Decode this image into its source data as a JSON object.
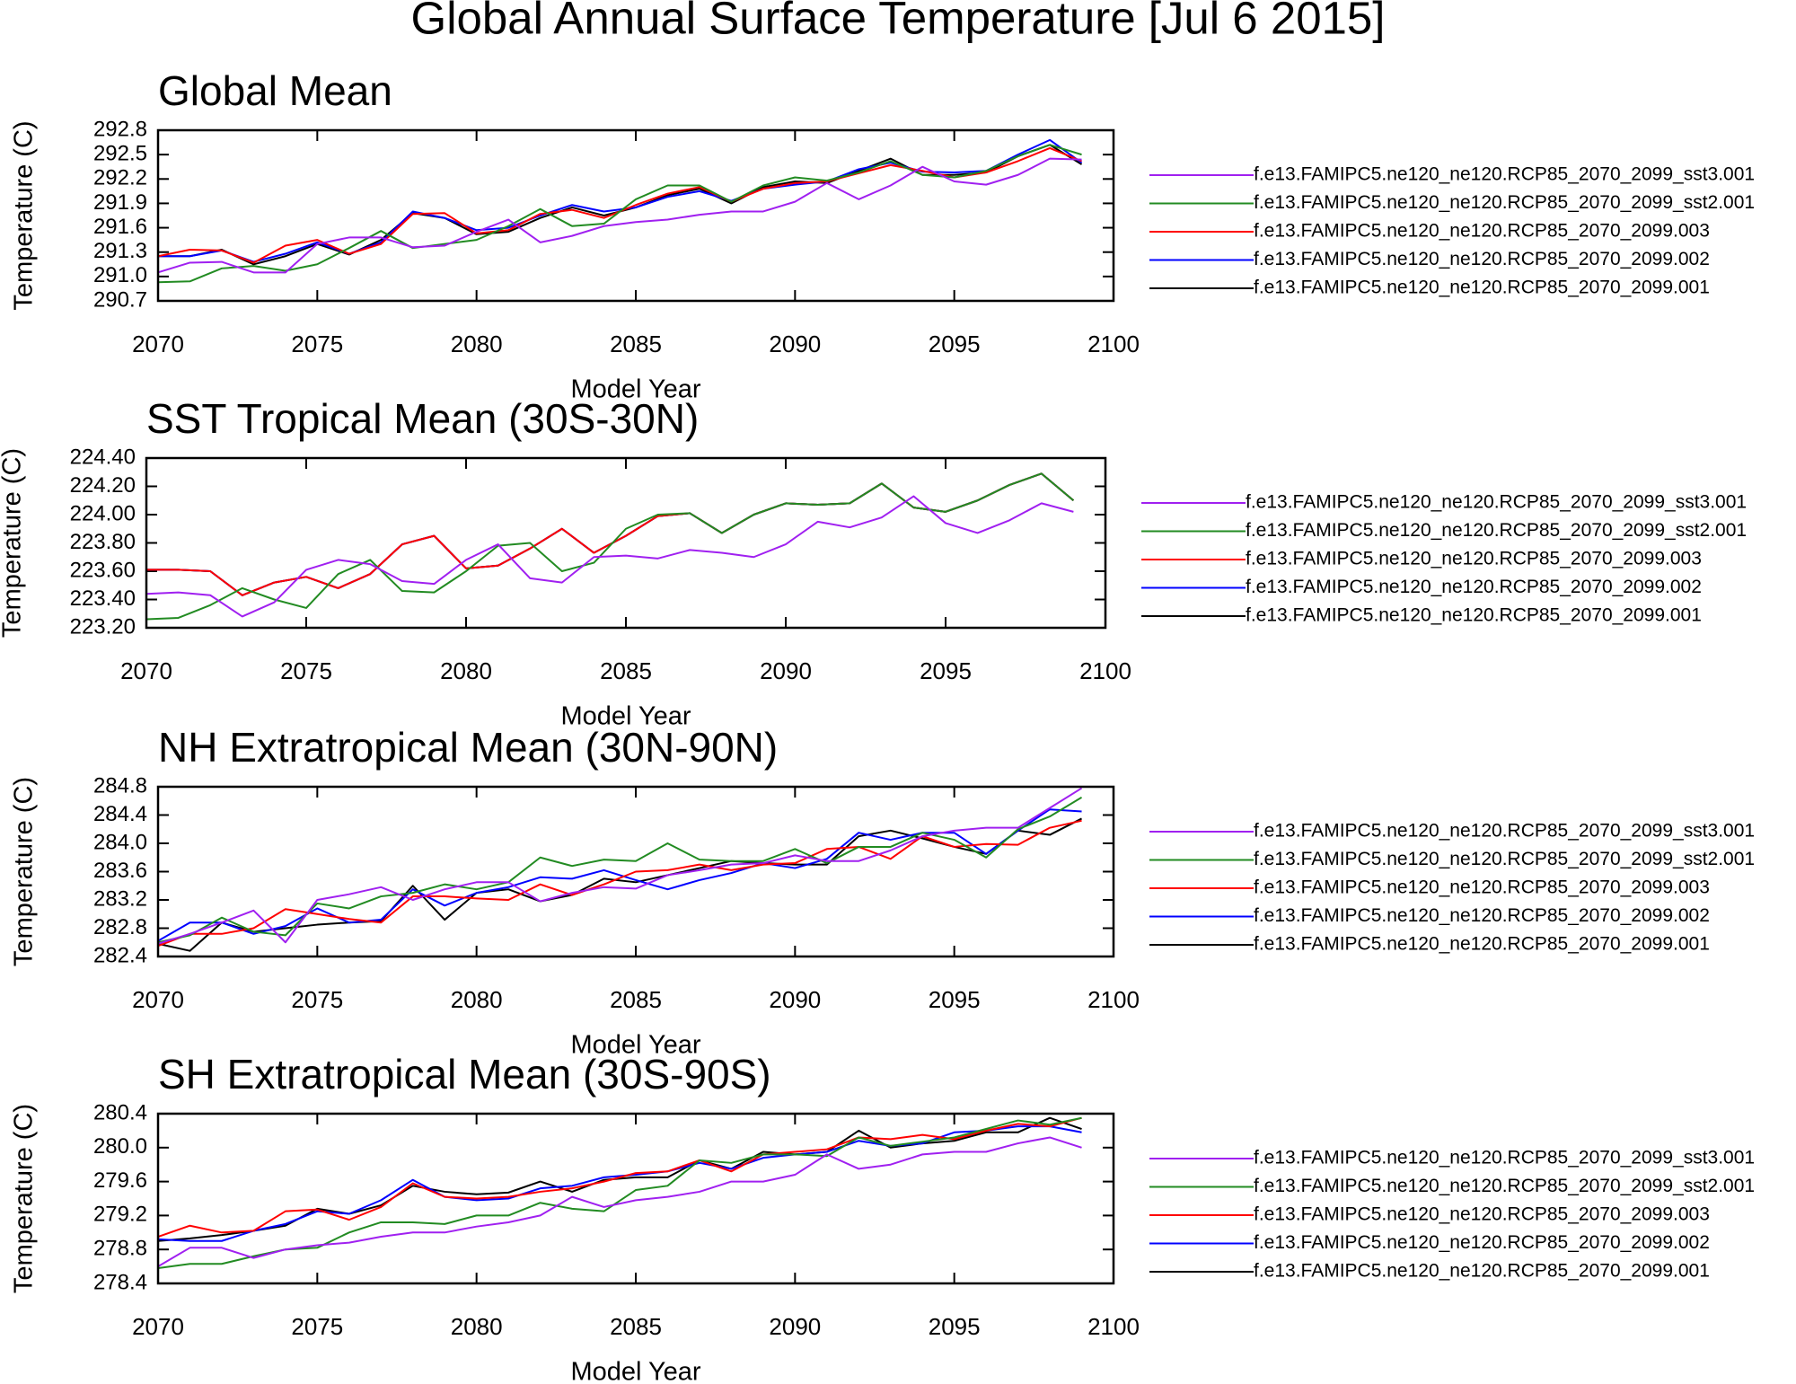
{
  "title": "Global Annual Surface Temperature [Jul  6 2015]",
  "chart_data": [
    {
      "type": "line",
      "title": "Global Mean",
      "xlabel": "Model Year",
      "ylabel": "Temperature (C)",
      "x": [
        2070,
        2071,
        2072,
        2073,
        2074,
        2075,
        2076,
        2077,
        2078,
        2079,
        2080,
        2081,
        2082,
        2083,
        2084,
        2085,
        2086,
        2087,
        2088,
        2089,
        2090,
        2091,
        2092,
        2093,
        2094,
        2095,
        2096,
        2097,
        2098,
        2099
      ],
      "xlim": [
        2070,
        2100
      ],
      "xticks": [
        2070,
        2075,
        2080,
        2085,
        2090,
        2095,
        2100
      ],
      "ylim": [
        290.7,
        292.8
      ],
      "yticks": [
        {
          "value": 290.7,
          "label": "290.7"
        },
        {
          "value": 291,
          "label": "291.0"
        },
        {
          "value": 291.3,
          "label": "291.3"
        },
        {
          "value": 291.6,
          "label": "291.6"
        },
        {
          "value": 291.9,
          "label": "291.9"
        },
        {
          "value": 292.2,
          "label": "292.2"
        },
        {
          "value": 292.5,
          "label": "292.5"
        },
        {
          "value": 292.8,
          "label": "292.8"
        }
      ],
      "series": [
        {
          "name": "f.e13.FAMIPC5.ne120_ne120.RCP85_2070_2099_sst3.001",
          "color": "#a020f0",
          "values": [
            291.05,
            291.17,
            291.18,
            291.05,
            291.05,
            291.4,
            291.48,
            291.48,
            291.36,
            291.38,
            291.55,
            291.7,
            291.42,
            291.5,
            291.62,
            291.67,
            291.7,
            291.76,
            291.8,
            291.8,
            291.92,
            292.15,
            291.95,
            292.12,
            292.35,
            292.17,
            292.13,
            292.25,
            292.45,
            292.44
          ]
        },
        {
          "name": "f.e13.FAMIPC5.ne120_ne120.RCP85_2070_2099_sst2.001",
          "color": "#228b22",
          "values": [
            290.93,
            290.94,
            291.1,
            291.13,
            291.07,
            291.15,
            291.35,
            291.56,
            291.35,
            291.4,
            291.45,
            291.62,
            291.83,
            291.62,
            291.65,
            291.95,
            292.12,
            292.12,
            291.92,
            292.12,
            292.22,
            292.18,
            292.28,
            292.42,
            292.25,
            292.22,
            292.3,
            292.48,
            292.62,
            292.5
          ]
        },
        {
          "name": "f.e13.FAMIPC5.ne120_ne120.RCP85_2070_2099.003",
          "color": "#ff0000",
          "values": [
            291.25,
            291.33,
            291.32,
            291.17,
            291.38,
            291.45,
            291.28,
            291.4,
            291.77,
            291.78,
            291.53,
            291.57,
            291.77,
            291.82,
            291.72,
            291.88,
            292.02,
            292.1,
            291.92,
            292.08,
            292.15,
            292.17,
            292.27,
            292.37,
            292.3,
            292.22,
            292.28,
            292.42,
            292.58,
            292.42
          ]
        },
        {
          "name": "f.e13.FAMIPC5.ne120_ne120.RCP85_2070_2099.002",
          "color": "#0000ff",
          "values": [
            291.25,
            291.25,
            291.32,
            291.18,
            291.28,
            291.42,
            291.28,
            291.42,
            291.8,
            291.72,
            291.57,
            291.6,
            291.75,
            291.88,
            291.8,
            291.85,
            291.98,
            292.05,
            291.93,
            292.08,
            292.13,
            292.17,
            292.32,
            292.4,
            292.29,
            292.28,
            292.3,
            292.5,
            292.68,
            292.4
          ]
        },
        {
          "name": "f.e13.FAMIPC5.ne120_ne120.RCP85_2070_2099.001",
          "color": "#000000",
          "values": [
            291.25,
            291.25,
            291.33,
            291.15,
            291.25,
            291.4,
            291.27,
            291.45,
            291.78,
            291.72,
            291.52,
            291.55,
            291.72,
            291.85,
            291.75,
            291.85,
            292.0,
            292.08,
            291.9,
            292.1,
            292.17,
            292.15,
            292.3,
            292.45,
            292.25,
            292.25,
            292.28,
            292.48,
            292.62,
            292.38
          ]
        }
      ]
    },
    {
      "type": "line",
      "title": "SST Tropical Mean (30S-30N)",
      "xlabel": "Model Year",
      "ylabel": "Temperature (C)",
      "x": [
        2070,
        2071,
        2072,
        2073,
        2074,
        2075,
        2076,
        2077,
        2078,
        2079,
        2080,
        2081,
        2082,
        2083,
        2084,
        2085,
        2086,
        2087,
        2088,
        2089,
        2090,
        2091,
        2092,
        2093,
        2094,
        2095,
        2096,
        2097,
        2098,
        2099
      ],
      "xlim": [
        2070,
        2100
      ],
      "xticks": [
        2070,
        2075,
        2080,
        2085,
        2090,
        2095,
        2100
      ],
      "ylim": [
        223.2,
        224.4
      ],
      "yticks": [
        {
          "value": 223.2,
          "label": "223.20"
        },
        {
          "value": 223.4,
          "label": "223.40"
        },
        {
          "value": 223.6,
          "label": "223.60"
        },
        {
          "value": 223.8,
          "label": "223.80"
        },
        {
          "value": 224,
          "label": "224.00"
        },
        {
          "value": 224.2,
          "label": "224.20"
        },
        {
          "value": 224.4,
          "label": "224.40"
        }
      ],
      "series": [
        {
          "name": "f.e13.FAMIPC5.ne120_ne120.RCP85_2070_2099_sst3.001",
          "color": "#a020f0",
          "values": [
            223.44,
            223.45,
            223.43,
            223.28,
            223.38,
            223.61,
            223.68,
            223.65,
            223.53,
            223.51,
            223.68,
            223.79,
            223.55,
            223.52,
            223.7,
            223.71,
            223.69,
            223.75,
            223.73,
            223.7,
            223.79,
            223.95,
            223.91,
            223.98,
            224.13,
            223.94,
            223.87,
            223.96,
            224.08,
            224.02
          ]
        },
        {
          "name": "f.e13.FAMIPC5.ne120_ne120.RCP85_2070_2099_sst2.001",
          "color": "#228b22",
          "values": [
            223.26,
            223.27,
            223.36,
            223.48,
            223.4,
            223.34,
            223.58,
            223.68,
            223.46,
            223.45,
            223.6,
            223.78,
            223.8,
            223.6,
            223.66,
            223.9,
            224.0,
            224.01,
            223.87,
            224.0,
            224.08,
            224.07,
            224.08,
            224.22,
            224.05,
            224.02,
            224.1,
            224.21,
            224.29,
            224.1
          ]
        },
        {
          "name": "f.e13.FAMIPC5.ne120_ne120.RCP85_2070_2099.003",
          "color": "#ff0000",
          "values": [
            223.61,
            223.61,
            223.6,
            223.43,
            223.52,
            223.56,
            223.48,
            223.58,
            223.79,
            223.85,
            223.62,
            223.64,
            223.76,
            223.9,
            223.73,
            223.85,
            223.99,
            224.01,
            223.87,
            224.0,
            224.08,
            224.07,
            224.08,
            224.22,
            224.05,
            224.02,
            224.1,
            224.21,
            224.29,
            224.1
          ]
        },
        {
          "name": "f.e13.FAMIPC5.ne120_ne120.RCP85_2070_2099.002",
          "color": "#0000ff",
          "values": [
            223.61,
            223.61,
            223.6,
            223.43,
            223.52,
            223.56,
            223.48,
            223.58,
            223.79,
            223.85,
            223.62,
            223.64,
            223.76,
            223.9,
            223.73,
            223.85,
            223.99,
            224.01,
            223.87,
            224.0,
            224.08,
            224.07,
            224.08,
            224.22,
            224.05,
            224.02,
            224.1,
            224.21,
            224.29,
            224.1
          ]
        },
        {
          "name": "f.e13.FAMIPC5.ne120_ne120.RCP85_2070_2099.001",
          "color": "#000000",
          "values": [
            223.61,
            223.61,
            223.6,
            223.43,
            223.52,
            223.56,
            223.48,
            223.58,
            223.79,
            223.85,
            223.62,
            223.64,
            223.76,
            223.9,
            223.73,
            223.85,
            223.99,
            224.01,
            223.87,
            224.0,
            224.08,
            224.07,
            224.08,
            224.22,
            224.05,
            224.02,
            224.1,
            224.21,
            224.29,
            224.1
          ]
        }
      ]
    },
    {
      "type": "line",
      "title": "NH Extratropical Mean (30N-90N)",
      "xlabel": "Model Year",
      "ylabel": "Temperature (C)",
      "x": [
        2070,
        2071,
        2072,
        2073,
        2074,
        2075,
        2076,
        2077,
        2078,
        2079,
        2080,
        2081,
        2082,
        2083,
        2084,
        2085,
        2086,
        2087,
        2088,
        2089,
        2090,
        2091,
        2092,
        2093,
        2094,
        2095,
        2096,
        2097,
        2098,
        2099
      ],
      "xlim": [
        2070,
        2100
      ],
      "xticks": [
        2070,
        2075,
        2080,
        2085,
        2090,
        2095,
        2100
      ],
      "ylim": [
        282.4,
        284.8
      ],
      "yticks": [
        282.4,
        282.8,
        283.2,
        283.6,
        {
          "value": 284,
          "label": "284.0"
        },
        284.4,
        284.8
      ],
      "series": [
        {
          "name": "f.e13.FAMIPC5.ne120_ne120.RCP85_2070_2099_sst3.001",
          "color": "#a020f0",
          "values": [
            282.58,
            282.72,
            282.88,
            283.05,
            282.6,
            283.2,
            283.28,
            283.38,
            283.2,
            283.35,
            283.45,
            283.45,
            283.18,
            283.3,
            283.38,
            283.36,
            283.55,
            283.62,
            283.7,
            283.72,
            283.83,
            283.75,
            283.75,
            283.9,
            284.1,
            284.18,
            284.22,
            284.22,
            284.5,
            284.78
          ]
        },
        {
          "name": "f.e13.FAMIPC5.ne120_ne120.RCP85_2070_2099_sst2.001",
          "color": "#228b22",
          "values": [
            282.6,
            282.7,
            282.95,
            282.75,
            282.7,
            283.15,
            283.08,
            283.25,
            283.3,
            283.42,
            283.35,
            283.45,
            283.8,
            283.68,
            283.77,
            283.75,
            284.0,
            283.77,
            283.75,
            283.75,
            283.92,
            283.72,
            283.95,
            283.95,
            284.15,
            284.05,
            283.8,
            284.2,
            284.38,
            284.65
          ]
        },
        {
          "name": "f.e13.FAMIPC5.ne120_ne120.RCP85_2070_2099.003",
          "color": "#ff0000",
          "values": [
            282.55,
            282.72,
            282.72,
            282.8,
            283.07,
            283.0,
            282.93,
            282.88,
            283.25,
            283.25,
            283.22,
            283.2,
            283.42,
            283.27,
            283.42,
            283.6,
            283.62,
            283.7,
            283.62,
            283.7,
            283.72,
            283.92,
            283.95,
            283.78,
            284.1,
            283.95,
            283.99,
            283.98,
            284.22,
            284.32
          ]
        },
        {
          "name": "f.e13.FAMIPC5.ne120_ne120.RCP85_2070_2099.002",
          "color": "#0000ff",
          "values": [
            282.62,
            282.88,
            282.88,
            282.72,
            282.83,
            283.08,
            282.88,
            282.92,
            283.35,
            283.12,
            283.3,
            283.38,
            283.52,
            283.5,
            283.62,
            283.48,
            283.35,
            283.48,
            283.58,
            283.72,
            283.65,
            283.78,
            284.15,
            284.05,
            284.15,
            284.15,
            283.85,
            284.18,
            284.48,
            284.45
          ]
        },
        {
          "name": "f.e13.FAMIPC5.ne120_ne120.RCP85_2070_2099.001",
          "color": "#000000",
          "values": [
            282.58,
            282.48,
            282.88,
            282.75,
            282.8,
            282.85,
            282.88,
            282.9,
            283.4,
            282.92,
            283.3,
            283.35,
            283.18,
            283.27,
            283.5,
            283.45,
            283.55,
            283.65,
            283.75,
            283.72,
            283.7,
            283.7,
            284.1,
            284.18,
            284.07,
            283.95,
            283.85,
            284.18,
            284.12,
            284.35
          ]
        }
      ]
    },
    {
      "type": "line",
      "title": "SH Extratropical Mean (30S-90S)",
      "xlabel": "Model Year",
      "ylabel": "Temperature (C)",
      "x": [
        2070,
        2071,
        2072,
        2073,
        2074,
        2075,
        2076,
        2077,
        2078,
        2079,
        2080,
        2081,
        2082,
        2083,
        2084,
        2085,
        2086,
        2087,
        2088,
        2089,
        2090,
        2091,
        2092,
        2093,
        2094,
        2095,
        2096,
        2097,
        2098,
        2099
      ],
      "xlim": [
        2070,
        2100
      ],
      "xticks": [
        2070,
        2075,
        2080,
        2085,
        2090,
        2095,
        2100
      ],
      "ylim": [
        278.4,
        280.4
      ],
      "yticks": [
        278.4,
        278.8,
        279.2,
        279.6,
        {
          "value": 280,
          "label": "280.0"
        },
        280.4
      ],
      "series": [
        {
          "name": "f.e13.FAMIPC5.ne120_ne120.RCP85_2070_2099_sst3.001",
          "color": "#a020f0",
          "values": [
            278.6,
            278.82,
            278.82,
            278.7,
            278.8,
            278.85,
            278.88,
            278.95,
            279.0,
            279.0,
            279.07,
            279.12,
            279.2,
            279.42,
            279.3,
            279.38,
            279.42,
            279.48,
            279.6,
            279.6,
            279.68,
            279.92,
            279.75,
            279.8,
            279.92,
            279.95,
            279.95,
            280.05,
            280.12,
            280.0
          ]
        },
        {
          "name": "f.e13.FAMIPC5.ne120_ne120.RCP85_2070_2099_sst2.001",
          "color": "#228b22",
          "values": [
            278.58,
            278.63,
            278.63,
            278.72,
            278.8,
            278.82,
            279.0,
            279.12,
            279.12,
            279.1,
            279.2,
            279.2,
            279.35,
            279.28,
            279.25,
            279.5,
            279.55,
            279.85,
            279.82,
            279.92,
            279.92,
            279.9,
            280.12,
            280.02,
            280.07,
            280.12,
            280.22,
            280.32,
            280.27,
            280.35
          ]
        },
        {
          "name": "f.e13.FAMIPC5.ne120_ne120.RCP85_2070_2099.003",
          "color": "#ff0000",
          "values": [
            278.95,
            279.08,
            279.0,
            279.02,
            279.25,
            279.27,
            279.15,
            279.3,
            279.58,
            279.42,
            279.4,
            279.42,
            279.48,
            279.52,
            279.6,
            279.7,
            279.72,
            279.85,
            279.72,
            279.92,
            279.95,
            279.98,
            280.12,
            280.1,
            280.15,
            280.1,
            280.2,
            280.28,
            280.25,
            280.35
          ]
        },
        {
          "name": "f.e13.FAMIPC5.ne120_ne120.RCP85_2070_2099.002",
          "color": "#0000ff",
          "values": [
            278.92,
            278.9,
            278.9,
            279.02,
            279.1,
            279.25,
            279.22,
            279.38,
            279.62,
            279.42,
            279.38,
            279.4,
            279.52,
            279.55,
            279.65,
            279.68,
            279.72,
            279.82,
            279.75,
            279.88,
            279.92,
            279.95,
            280.08,
            280.02,
            280.05,
            280.18,
            280.2,
            280.25,
            280.25,
            280.18
          ]
        },
        {
          "name": "f.e13.FAMIPC5.ne120_ne120.RCP85_2070_2099.001",
          "color": "#000000",
          "values": [
            278.9,
            278.93,
            278.97,
            279.02,
            279.08,
            279.28,
            279.22,
            279.32,
            279.55,
            279.48,
            279.45,
            279.47,
            279.6,
            279.48,
            279.62,
            279.65,
            279.65,
            279.85,
            279.75,
            279.95,
            279.92,
            279.95,
            280.2,
            280.0,
            280.05,
            280.08,
            280.18,
            280.18,
            280.35,
            280.22
          ]
        }
      ]
    }
  ]
}
